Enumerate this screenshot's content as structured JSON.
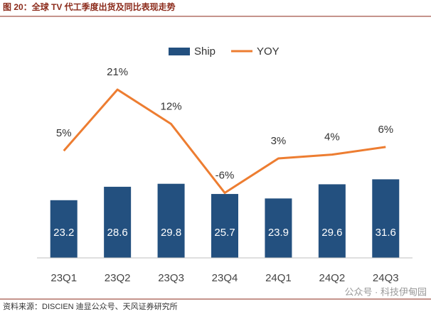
{
  "chart_data": {
    "type": "bar",
    "title": "图 20：全球 TV 代工季度出货及同比表现走势",
    "categories": [
      "23Q1",
      "23Q2",
      "23Q3",
      "23Q4",
      "24Q1",
      "24Q2",
      "24Q3"
    ],
    "series": [
      {
        "name": "Ship",
        "type": "bar",
        "color": "#23507f",
        "values": [
          23.2,
          28.6,
          29.8,
          25.7,
          23.9,
          29.6,
          31.6
        ]
      },
      {
        "name": "YOY",
        "type": "line",
        "axis": "y2",
        "color": "#ed7d31",
        "values": [
          5,
          21,
          12,
          -6,
          3,
          4,
          6
        ],
        "value_labels": [
          "5%",
          "21%",
          "12%",
          "-6%",
          "3%",
          "4%",
          "6%"
        ]
      }
    ],
    "ylim": [
      0,
      80
    ],
    "y2lim": [
      -23,
      29
    ],
    "legend": "top",
    "source": "资料来源：DISCIEN 迪显公众号、天风证券研究所",
    "watermark": "公众号 · 科技伊甸园"
  }
}
